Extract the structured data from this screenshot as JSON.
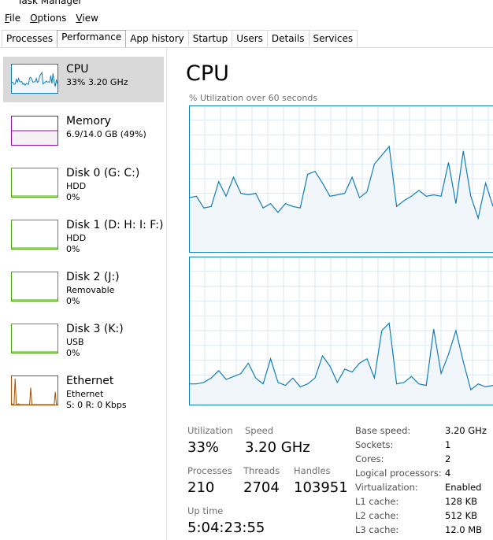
{
  "window": {
    "title": "Task Manager"
  },
  "menu": [
    "File",
    "Options",
    "View"
  ],
  "tabs": [
    "Processes",
    "Performance",
    "App history",
    "Startup",
    "Users",
    "Details",
    "Services"
  ],
  "sidebar": [
    {
      "name": "CPU",
      "detail": "33% 3.20 GHz"
    },
    {
      "name": "Memory",
      "detail": "6.9/14.0 GB (49%)"
    },
    {
      "name": "Disk 0 (G: C:)",
      "kind": "HDD",
      "detail": "0%"
    },
    {
      "name": "Disk 1 (D: H: I: F:)",
      "kind": "HDD",
      "detail": "0%"
    },
    {
      "name": "Disk 2 (J:)",
      "kind": "Removable",
      "detail": "0%"
    },
    {
      "name": "Disk 3 (K:)",
      "kind": "USB",
      "detail": "0%"
    },
    {
      "name": "Ethernet",
      "kind": "Ethernet",
      "detail": "S: 0 R: 0 Kbps"
    }
  ],
  "ethernet_thumbnail": {
    "values": [
      4,
      0,
      0,
      92,
      0,
      0,
      3,
      0,
      0,
      0,
      0,
      0,
      0,
      0,
      0,
      0,
      0,
      60,
      0,
      0,
      0,
      0,
      0,
      0,
      0,
      0,
      0,
      0,
      0,
      0,
      0,
      0,
      0,
      0,
      0,
      0,
      0,
      0,
      0,
      45,
      0,
      0
    ],
    "ylim": [
      0,
      100
    ]
  },
  "main": {
    "title": "CPU",
    "graph_label": "% Utilization over 60 seconds",
    "ylim": [
      0,
      100
    ],
    "graphs": [
      {
        "values": [
          37,
          38,
          30,
          31,
          48,
          38,
          51,
          40,
          39,
          40,
          30,
          33,
          27,
          33,
          31,
          30,
          53,
          55,
          47,
          38,
          39,
          40,
          51,
          37,
          41,
          60,
          66,
          72,
          31,
          35,
          38,
          42,
          38,
          39,
          38,
          61,
          33,
          69,
          38,
          23,
          47,
          31
        ]
      },
      {
        "values": [
          14,
          14,
          15,
          18,
          23,
          17,
          19,
          21,
          28,
          18,
          14,
          31,
          15,
          13,
          18,
          12,
          14,
          18,
          33,
          26,
          15,
          24,
          22,
          28,
          31,
          18,
          50,
          55,
          14,
          15,
          19,
          14,
          13,
          51,
          21,
          34,
          50,
          29,
          10,
          14,
          12,
          13
        ]
      }
    ]
  },
  "stats": [
    {
      "label": "Utilization",
      "value": "33%"
    },
    {
      "label": "Speed",
      "value": "3.20 GHz"
    },
    {
      "label": "Processes",
      "value": "210"
    },
    {
      "label": "Threads",
      "value": "2704"
    },
    {
      "label": "Handles",
      "value": "103951"
    },
    {
      "label": "Up time",
      "value": "5:04:23:55"
    }
  ],
  "specs": [
    {
      "label": "Base speed:",
      "value": "3.20 GHz"
    },
    {
      "label": "Sockets:",
      "value": "1"
    },
    {
      "label": "Cores:",
      "value": "2"
    },
    {
      "label": "Logical processors:",
      "value": "4"
    },
    {
      "label": "Virtualization:",
      "value": "Enabled"
    },
    {
      "label": "L1 cache:",
      "value": "128 KB"
    },
    {
      "label": "L2 cache:",
      "value": "512 KB"
    },
    {
      "label": "L3 cache:",
      "value": "12.0 MB"
    }
  ]
}
